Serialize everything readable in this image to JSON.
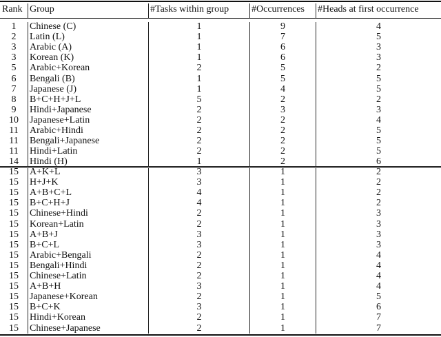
{
  "headers": {
    "rank": "Rank",
    "group": "Group",
    "tasks": "#Tasks within group",
    "occurrences": "#Occurrences",
    "heads": "#Heads at first occurrence"
  },
  "section1": [
    [
      "1",
      "Chinese (C)",
      "1",
      "9",
      "4"
    ],
    [
      "2",
      "Latin (L)",
      "1",
      "7",
      "5"
    ],
    [
      "3",
      "Arabic (A)",
      "1",
      "6",
      "3"
    ],
    [
      "3",
      "Korean (K)",
      "1",
      "6",
      "3"
    ],
    [
      "5",
      "Arabic+Korean",
      "2",
      "5",
      "2"
    ],
    [
      "6",
      "Bengali (B)",
      "1",
      "5",
      "5"
    ],
    [
      "7",
      "Japanese (J)",
      "1",
      "4",
      "5"
    ],
    [
      "8",
      "B+C+H+J+L",
      "5",
      "2",
      "2"
    ],
    [
      "9",
      "Hindi+Japanese",
      "2",
      "3",
      "3"
    ],
    [
      "10",
      "Japanese+Latin",
      "2",
      "2",
      "4"
    ],
    [
      "11",
      "Arabic+Hindi",
      "2",
      "2",
      "5"
    ],
    [
      "11",
      "Bengali+Japanese",
      "2",
      "2",
      "5"
    ],
    [
      "11",
      "Hindi+Latin",
      "2",
      "2",
      "5"
    ],
    [
      "14",
      "Hindi (H)",
      "1",
      "2",
      "6"
    ]
  ],
  "section2": [
    [
      "15",
      "A+K+L",
      "3",
      "1",
      "2"
    ],
    [
      "15",
      "H+J+K",
      "3",
      "1",
      "2"
    ],
    [
      "15",
      "A+B+C+L",
      "4",
      "1",
      "2"
    ],
    [
      "15",
      "B+C+H+J",
      "4",
      "1",
      "2"
    ],
    [
      "15",
      "Chinese+Hindi",
      "2",
      "1",
      "3"
    ],
    [
      "15",
      "Korean+Latin",
      "2",
      "1",
      "3"
    ],
    [
      "15",
      "A+B+J",
      "3",
      "1",
      "3"
    ],
    [
      "15",
      "B+C+L",
      "3",
      "1",
      "3"
    ],
    [
      "15",
      "Arabic+Bengali",
      "2",
      "1",
      "4"
    ],
    [
      "15",
      "Bengali+Hindi",
      "2",
      "1",
      "4"
    ],
    [
      "15",
      "Chinese+Latin",
      "2",
      "1",
      "4"
    ],
    [
      "15",
      "A+B+H",
      "3",
      "1",
      "4"
    ],
    [
      "15",
      "Japanese+Korean",
      "2",
      "1",
      "5"
    ],
    [
      "15",
      "B+C+K",
      "3",
      "1",
      "6"
    ],
    [
      "15",
      "Hindi+Korean",
      "2",
      "1",
      "7"
    ],
    [
      "15",
      "Chinese+Japanese",
      "2",
      "1",
      "7"
    ]
  ]
}
